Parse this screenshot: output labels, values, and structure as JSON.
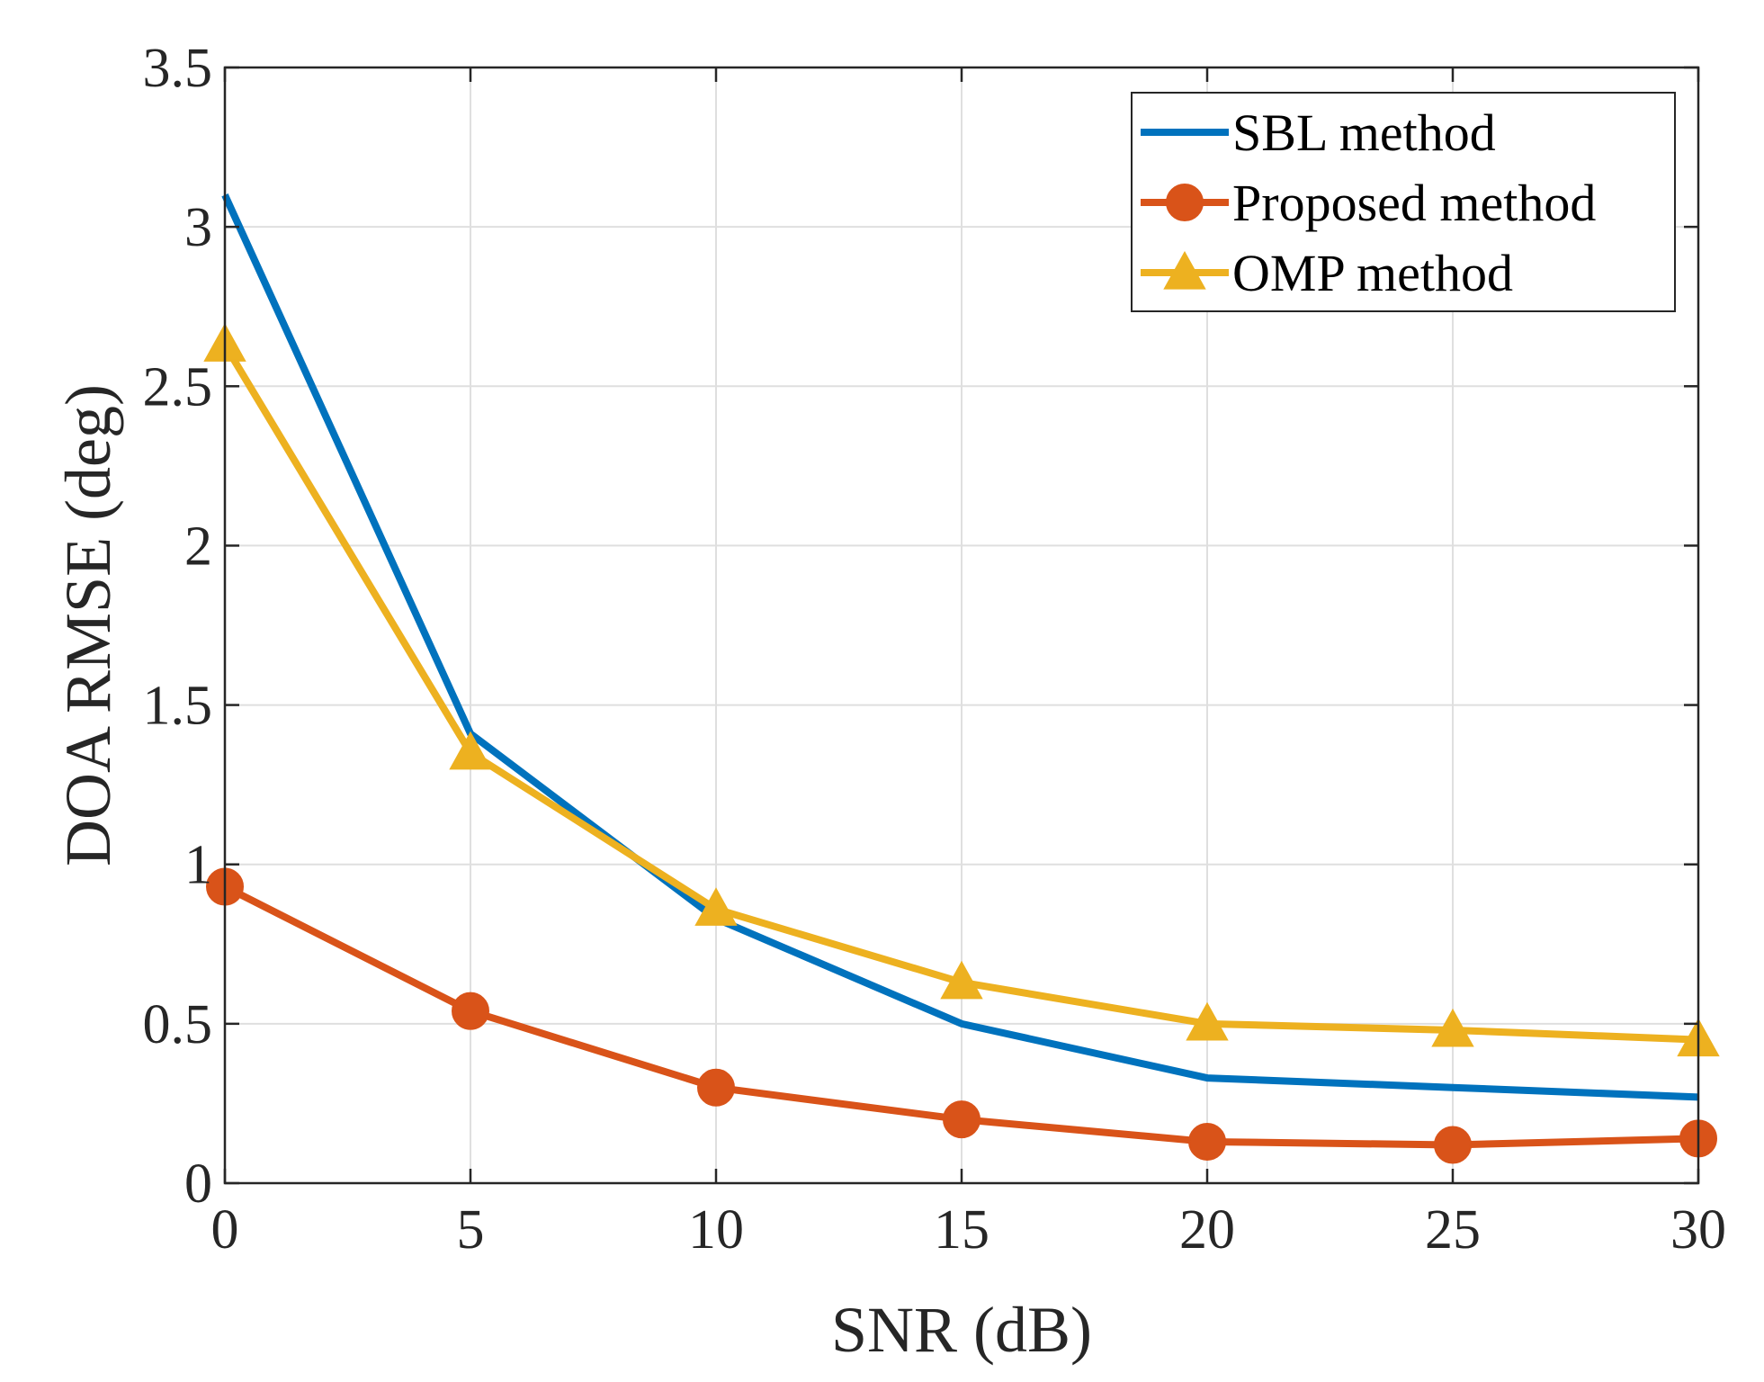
{
  "chart_data": {
    "type": "line",
    "title": "",
    "xlabel": "SNR (dB)",
    "ylabel": "DOA RMSE (deg)",
    "x": [
      0,
      5,
      10,
      15,
      20,
      25,
      30
    ],
    "xlim": [
      0,
      30
    ],
    "ylim": [
      0,
      3.5
    ],
    "xticks": [
      "0",
      "5",
      "10",
      "15",
      "20",
      "25",
      "30"
    ],
    "yticks": [
      "0",
      "0.5",
      "1",
      "1.5",
      "2",
      "2.5",
      "3",
      "3.5"
    ],
    "grid": true,
    "legend_position": "top-right",
    "series": [
      {
        "name": "SBL method",
        "values": [
          3.1,
          1.41,
          0.83,
          0.5,
          0.33,
          0.3,
          0.27
        ],
        "color": "#0072BD",
        "marker": "none"
      },
      {
        "name": "Proposed method",
        "values": [
          0.93,
          0.54,
          0.3,
          0.2,
          0.13,
          0.12,
          0.14
        ],
        "color": "#D95319",
        "marker": "circle"
      },
      {
        "name": "OMP method",
        "values": [
          2.63,
          1.35,
          0.86,
          0.63,
          0.5,
          0.48,
          0.45
        ],
        "color": "#EDB120",
        "marker": "triangle"
      }
    ]
  }
}
